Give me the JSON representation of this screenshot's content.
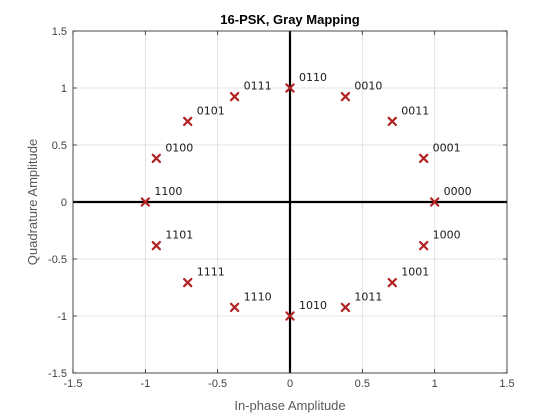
{
  "chart_data": {
    "type": "scatter",
    "title": "16-PSK, Gray Mapping",
    "xlabel": "In-phase Amplitude",
    "ylabel": "Quadrature Amplitude",
    "xlim": [
      -1.5,
      1.5
    ],
    "ylim": [
      -1.5,
      1.5
    ],
    "xticks": [
      -1.5,
      -1,
      -0.5,
      0,
      0.5,
      1,
      1.5
    ],
    "yticks": [
      -1.5,
      -1,
      -0.5,
      0,
      0.5,
      1,
      1.5
    ],
    "xtick_labels": [
      "-1.5",
      "-1",
      "-0.5",
      "0",
      "0.5",
      "1",
      "1.5"
    ],
    "ytick_labels": [
      "-1.5",
      "-1",
      "-0.5",
      "0",
      "0.5",
      "1",
      "1.5"
    ],
    "grid": true,
    "marker": "x",
    "marker_color": "#b22222",
    "points": [
      {
        "label": "0000",
        "x": 1.0,
        "y": 0.0
      },
      {
        "label": "0001",
        "x": 0.924,
        "y": 0.383
      },
      {
        "label": "0011",
        "x": 0.707,
        "y": 0.707
      },
      {
        "label": "0010",
        "x": 0.383,
        "y": 0.924
      },
      {
        "label": "0110",
        "x": 0.0,
        "y": 1.0
      },
      {
        "label": "0111",
        "x": -0.383,
        "y": 0.924
      },
      {
        "label": "0101",
        "x": -0.707,
        "y": 0.707
      },
      {
        "label": "0100",
        "x": -0.924,
        "y": 0.383
      },
      {
        "label": "1100",
        "x": -1.0,
        "y": 0.0
      },
      {
        "label": "1101",
        "x": -0.924,
        "y": -0.383
      },
      {
        "label": "1111",
        "x": -0.707,
        "y": -0.707
      },
      {
        "label": "1110",
        "x": -0.383,
        "y": -0.924
      },
      {
        "label": "1010",
        "x": 0.0,
        "y": -1.0
      },
      {
        "label": "1011",
        "x": 0.383,
        "y": -0.924
      },
      {
        "label": "1001",
        "x": 0.707,
        "y": -0.707
      },
      {
        "label": "1000",
        "x": 0.924,
        "y": -0.383
      }
    ]
  }
}
